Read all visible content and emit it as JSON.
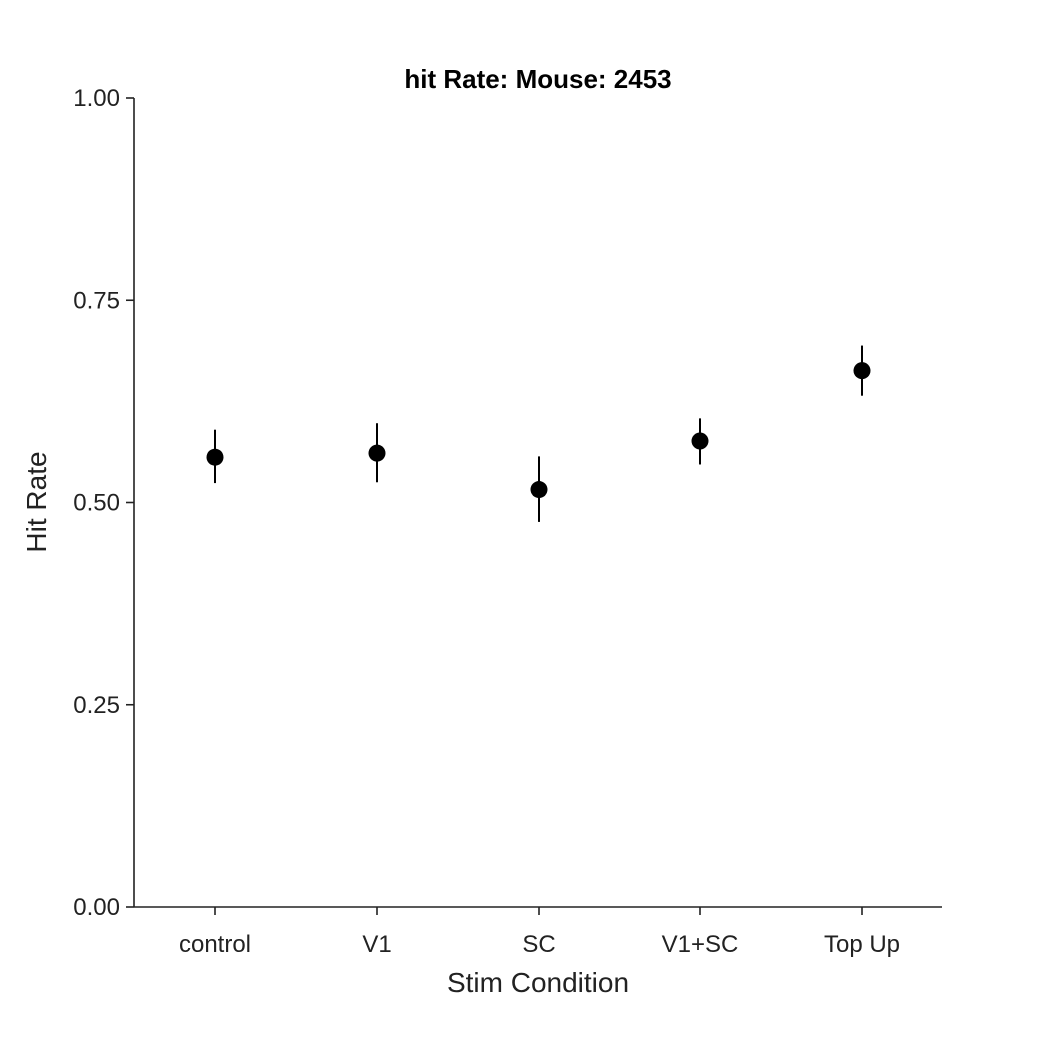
{
  "chart_data": {
    "type": "scatter",
    "title": "hit Rate: Mouse: 2453",
    "xlabel": "Stim Condition",
    "ylabel": "Hit Rate",
    "categories": [
      "control",
      "V1",
      "SC",
      "V1+SC",
      "Top Up"
    ],
    "y_ticks": [
      "0.00",
      "0.25",
      "0.50",
      "0.75",
      "1.00"
    ],
    "y_tick_values": [
      0.0,
      0.25,
      0.5,
      0.75,
      1.0
    ],
    "ylim": [
      0,
      1
    ],
    "grid": false,
    "series": [
      {
        "values": [
          0.556,
          0.561,
          0.516,
          0.576,
          0.663
        ],
        "error_low": [
          0.524,
          0.525,
          0.476,
          0.547,
          0.632
        ],
        "error_high": [
          0.59,
          0.598,
          0.557,
          0.604,
          0.694
        ],
        "color": "#000000"
      }
    ],
    "colors": {
      "axis": "#222222",
      "marker": "#000000"
    }
  }
}
